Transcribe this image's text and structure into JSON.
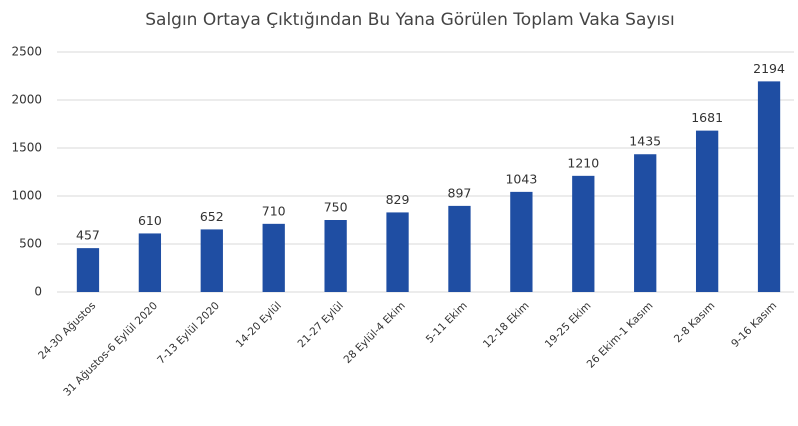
{
  "chart_data": {
    "type": "bar",
    "title": "Salgın Ortaya Çıktığından Bu Yana Görülen Toplam Vaka Sayısı",
    "categories": [
      "24-30 Ağustos",
      "31 Ağustos-6 Eylül 2020",
      "7-13 Eylül 2020",
      "14-20 Eylül",
      "21-27 Eylül",
      "28 Eylül-4 Ekim",
      "5-11 Ekim",
      "12-18 Ekim",
      "19-25 Ekim",
      "26 Ekim-1 Kasım",
      "2-8 Kasım",
      "9-16 Kasım"
    ],
    "values": [
      457,
      610,
      652,
      710,
      750,
      829,
      897,
      1043,
      1210,
      1435,
      1681,
      2194
    ],
    "color": "#1f4ea3",
    "ylim": [
      0,
      2500
    ],
    "yticks": [
      0,
      500,
      1000,
      1500,
      2000,
      2500
    ],
    "grid": true
  }
}
